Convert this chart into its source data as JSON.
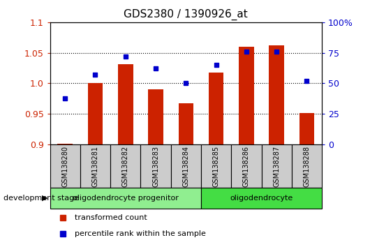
{
  "title": "GDS2380 / 1390926_at",
  "samples": [
    "GSM138280",
    "GSM138281",
    "GSM138282",
    "GSM138283",
    "GSM138284",
    "GSM138285",
    "GSM138286",
    "GSM138287",
    "GSM138288"
  ],
  "red_values": [
    0.901,
    1.0,
    1.031,
    0.99,
    0.967,
    1.018,
    1.06,
    1.062,
    0.951
  ],
  "blue_values": [
    38,
    57,
    72,
    62,
    50,
    65,
    76,
    76,
    52
  ],
  "ylim_left": [
    0.9,
    1.1
  ],
  "ylim_right": [
    0,
    100
  ],
  "yticks_left": [
    0.9,
    0.95,
    1.0,
    1.05,
    1.1
  ],
  "yticks_right": [
    0,
    25,
    50,
    75,
    100
  ],
  "groups": [
    {
      "label": "oligodendrocyte progenitor",
      "start": 0,
      "end": 4,
      "color": "#90EE90"
    },
    {
      "label": "oligodendrocyte",
      "start": 5,
      "end": 8,
      "color": "#44DD44"
    }
  ],
  "legend_items": [
    {
      "label": "transformed count",
      "color": "#CC2200"
    },
    {
      "label": "percentile rank within the sample",
      "color": "#0000CC"
    }
  ],
  "red_color": "#CC2200",
  "blue_color": "#0000CC",
  "bar_baseline": 0.9,
  "sample_box_color": "#CCCCCC",
  "development_label": "development stage"
}
